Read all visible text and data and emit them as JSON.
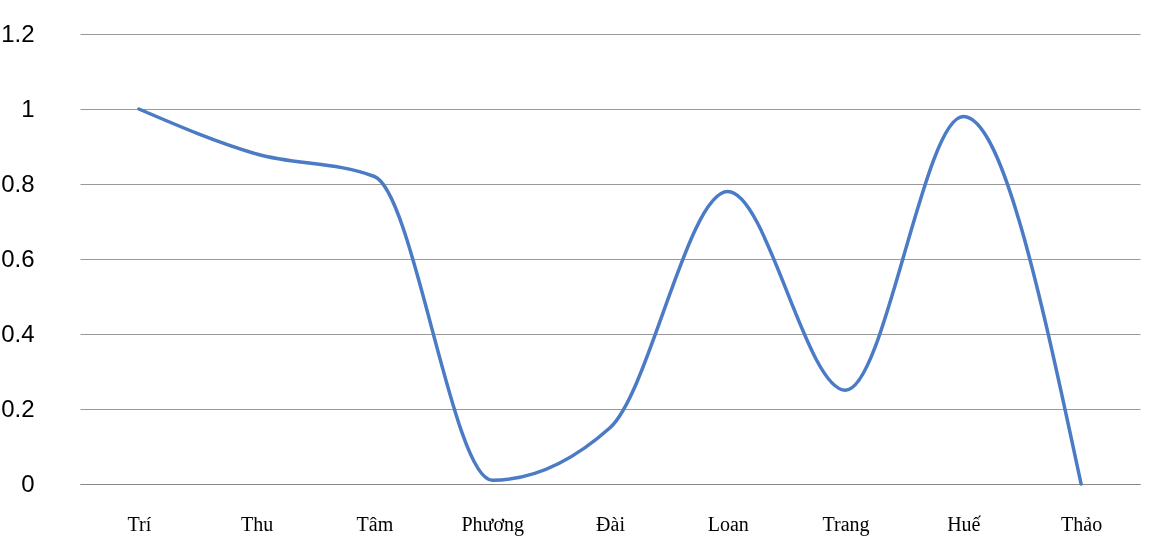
{
  "chart_data": {
    "type": "line",
    "categories": [
      "Trí",
      "Thu",
      "Tâm",
      "Phương",
      "Đài",
      "Loan",
      "Trang",
      "Huế",
      "Thảo"
    ],
    "series": [
      {
        "color": "#4a7bc4",
        "values": [
          1,
          0.88,
          0.82,
          0.01,
          0.15,
          0.78,
          0.25,
          0.98,
          0
        ]
      }
    ],
    "ylim": [
      0,
      1.2
    ],
    "yticks": [
      0,
      0.2,
      0.4,
      0.6,
      0.8,
      1,
      1.2
    ],
    "grid": "y",
    "legend": false,
    "marker": "none",
    "line_style": "solid"
  }
}
